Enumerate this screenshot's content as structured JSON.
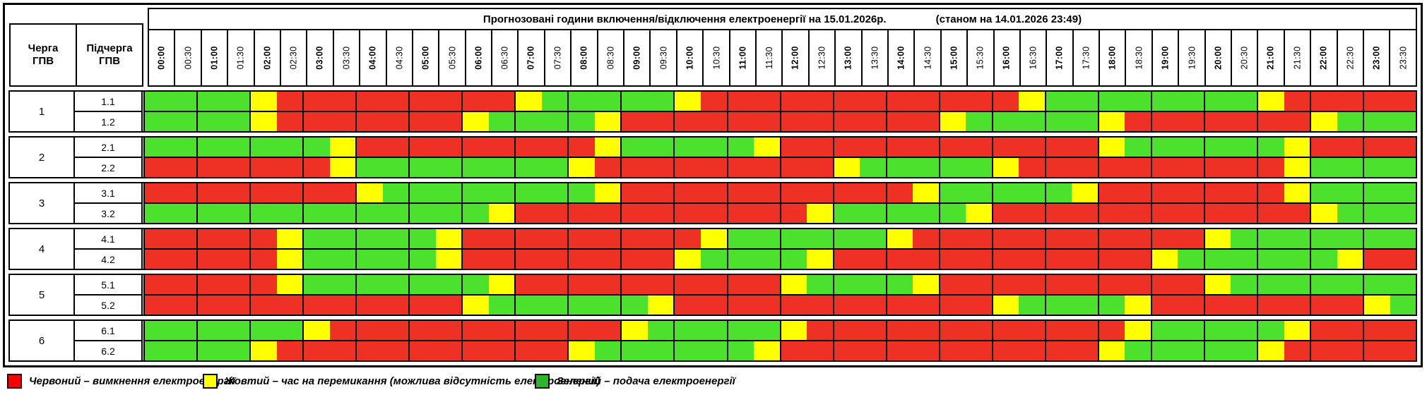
{
  "title": {
    "main": "Прогнозовані години включення/відключення електроенергії на 15.01.2026р.",
    "asof": "(станом на 14.01.2026 23:49)"
  },
  "columns": {
    "queue": "Черга ГПВ",
    "subqueue": "Підчерга ГПВ"
  },
  "colors": {
    "R": "#ee3124",
    "Y": "#ffff00",
    "G": "#4be12d",
    "legend_red": "#ff0000",
    "legend_yellow": "#ffff00",
    "legend_green": "#2eb52c"
  },
  "legend": [
    {
      "key": "R",
      "text": "Червоний – вимкнення електроенергії"
    },
    {
      "key": "Y",
      "text": "Жовтий – час на перемикання (можлива відсутність електроенергії)"
    },
    {
      "key": "G",
      "text": "Зелений – подача електроенергії"
    }
  ],
  "chart_data": {
    "type": "heatmap",
    "x": [
      "00:00",
      "00:30",
      "01:00",
      "01:30",
      "02:00",
      "02:30",
      "03:00",
      "03:30",
      "04:00",
      "04:30",
      "05:00",
      "05:30",
      "06:00",
      "06:30",
      "07:00",
      "07:30",
      "08:00",
      "08:30",
      "09:00",
      "09:30",
      "10:00",
      "10:30",
      "11:00",
      "11:30",
      "12:00",
      "12:30",
      "13:00",
      "13:30",
      "14:00",
      "14:30",
      "15:00",
      "15:30",
      "16:00",
      "16:30",
      "17:00",
      "17:30",
      "18:00",
      "18:30",
      "19:00",
      "19:30",
      "20:00",
      "20:30",
      "21:00",
      "21:30",
      "22:00",
      "22:30",
      "23:00",
      "23:30"
    ],
    "value_meaning": {
      "R": "вимкнення електроенергії",
      "Y": "час на перемикання (можлива відсутність електроенергії)",
      "G": "подача електроенергії"
    },
    "rows": [
      {
        "queue": "1",
        "subqueue": "1.1",
        "slots": "GGGGYRRRRRRRRRYGGGGGYRRRRRRRRRRRRYGGGGGGGGYRRRRR"
      },
      {
        "queue": "1",
        "subqueue": "1.2",
        "slots": "GGGGYRRRRRRRYGGGGYRRRRRRRRRRRRYGGGGGYRRRRRRRYGGG"
      },
      {
        "queue": "2",
        "subqueue": "2.1",
        "slots": "GGGGGGGYRRRRRRRRRYGGGGGYRRRRRRRRRRRRYGGGGGGYRRRR"
      },
      {
        "queue": "2",
        "subqueue": "2.2",
        "slots": "RRRRRRRYGGGGGGGGYRRRRRRRRRYGGGGGYRRRRRRRRRRYGGGG"
      },
      {
        "queue": "3",
        "subqueue": "3.1",
        "slots": "RRRRRRRRYGGGGGGGGYRRRRRRRRRRRYGGGGGYRRRRRRRYGGGG"
      },
      {
        "queue": "3",
        "subqueue": "3.2",
        "slots": "GGGGGGGGGGGGGYRRRRRRRRRRRYGGGGGYRRRRRRRRRRRRYGGG"
      },
      {
        "queue": "4",
        "subqueue": "4.1",
        "slots": "RRRRRYGGGGGYRRRRRRRRRYGGGGGGYRRRRRRRRRRRYGGGGGGG"
      },
      {
        "queue": "4",
        "subqueue": "4.2",
        "slots": "RRRRRYGGGGGYRRRRRRRRYGGGGYRRRRRRRRRRRRYGGGGGGYRR"
      },
      {
        "queue": "5",
        "subqueue": "5.1",
        "slots": "RRRRRYGGGGGGGYRRRRRRRRRRYGGGGYRRRRRRRRRRYGGGGGGG"
      },
      {
        "queue": "5",
        "subqueue": "5.2",
        "slots": "RRRRRRRRRRRRYGGGGGGYRRRRRRRRRRRRYGGGGYRRRRRRRRYG"
      },
      {
        "queue": "6",
        "subqueue": "6.1",
        "slots": "GGGGGGYRRRRRRRRRRRYGGGGGYRRRRRRRRRRRRYGGGGGYRRRR"
      },
      {
        "queue": "6",
        "subqueue": "6.2",
        "slots": "GGGGYRRRRRRRRRRRYGGGGGGYRRRRRRRRRRRRYGGGGGYRRRRR"
      }
    ]
  },
  "layout": {
    "legend_offsets": [
      0,
      277,
      747
    ]
  }
}
